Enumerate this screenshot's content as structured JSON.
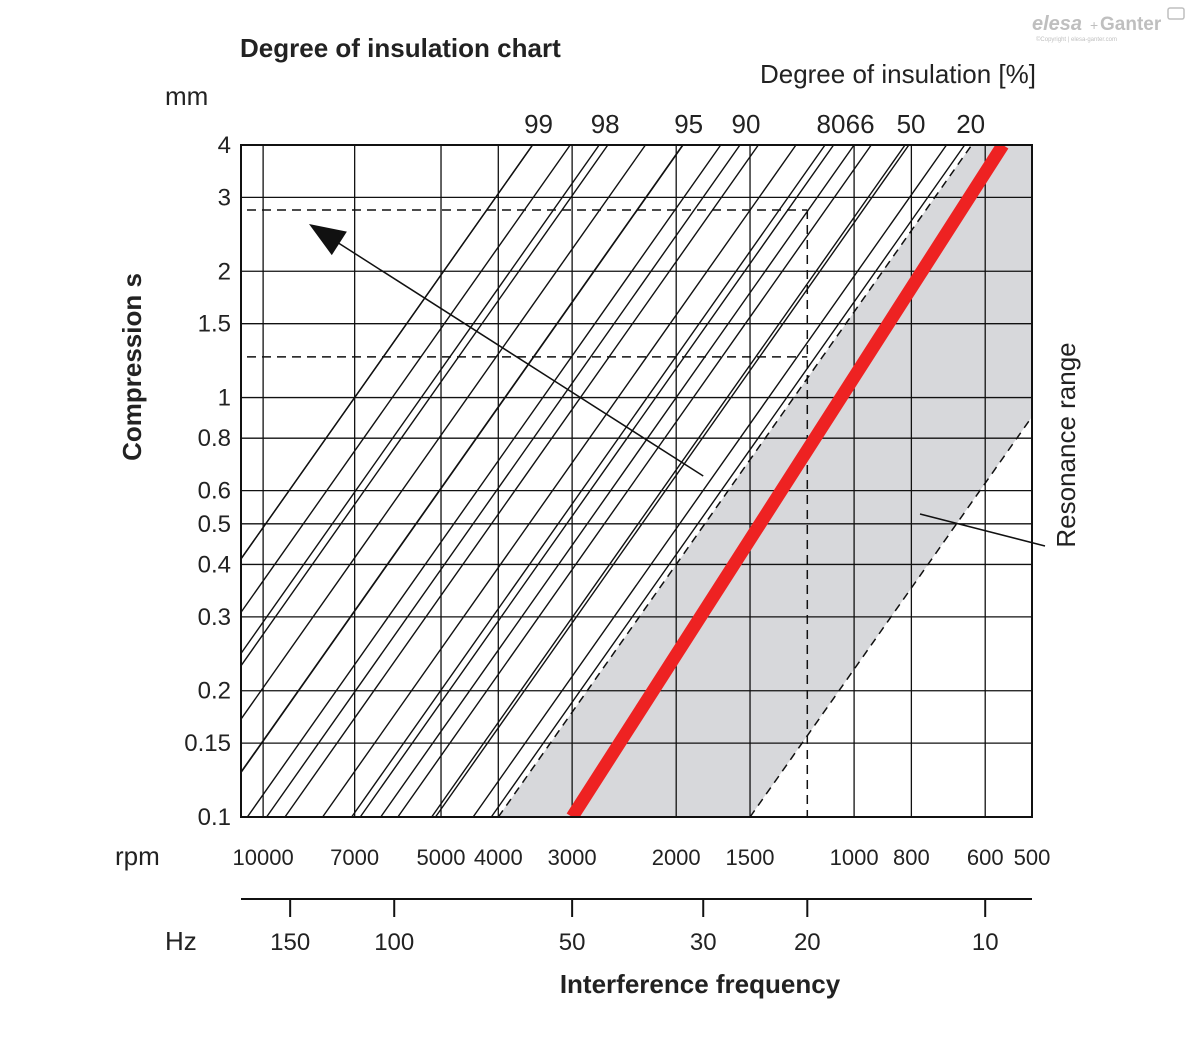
{
  "chart_data": {
    "type": "line",
    "title": "Degree of insulation chart",
    "y_axis": {
      "label": "Compression s",
      "unit": "mm",
      "scale": "log",
      "range": [
        0.1,
        4
      ],
      "ticks": [
        0.1,
        0.15,
        0.2,
        0.3,
        0.4,
        0.5,
        0.6,
        0.8,
        1,
        1.5,
        2,
        3,
        4
      ],
      "tick_labels": [
        "0.1",
        "0.15",
        "0.2",
        "0.3",
        "0.4",
        "0.5",
        "0.6",
        "0.8",
        "1",
        "1.5",
        "2",
        "3",
        "4"
      ]
    },
    "x_axis_rpm": {
      "label": "rpm",
      "scale": "log",
      "direction": "decreasing",
      "range": [
        10900,
        500
      ],
      "ticks": [
        10000,
        7000,
        5000,
        4000,
        3000,
        2000,
        1500,
        1000,
        800,
        600,
        500
      ],
      "tick_labels": [
        "10000",
        "7000",
        "5000",
        "4000",
        "3000",
        "2000",
        "1500",
        "1000",
        "800",
        "600",
        "500"
      ]
    },
    "x_axis_hz": {
      "label": "Hz",
      "ticks": [
        150,
        100,
        50,
        30,
        20,
        10
      ],
      "tick_labels": [
        "150",
        "100",
        "50",
        "30",
        "20",
        "10"
      ],
      "title": "Interference frequency"
    },
    "insulation_scale": {
      "label": "Degree of insulation [%]",
      "values": [
        "99",
        "98",
        "95",
        "90",
        "80",
        "66",
        "50",
        "20"
      ],
      "rpm_at_4mm": [
        3500,
        2700,
        1950,
        1560,
        1120,
        1000,
        820,
        650
      ]
    },
    "resonance": {
      "label": "Resonance range",
      "line_rpm_at_4mm": 560,
      "line_rpm_at_0_1mm": 3000,
      "band_left_rpm_at_0_1mm": 4000,
      "band_right_rpm_at_0_1mm": 1500,
      "color": "#ee2222",
      "band_color": "#d7d8db"
    },
    "example": {
      "rpm": 1200,
      "compression_mm": [
        1.25,
        2.8
      ],
      "arrow_from_rpm": 1800,
      "arrow_from_mm": 0.65
    },
    "grid": true
  },
  "logo": {
    "text_a": "elesa",
    "text_b": "Ganter",
    "copyright": "©Copyright | elesa-ganter.com"
  }
}
